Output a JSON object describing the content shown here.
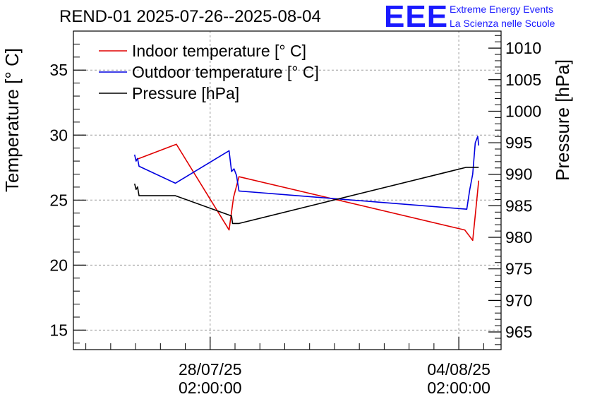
{
  "header": {
    "title": "REND-01 2025-07-26--2025-08-04",
    "logo_text": "EEE",
    "logo_line1": "Extreme Energy Events",
    "logo_line2": "La Scienza nelle Scuole"
  },
  "colors": {
    "indoor": "#e00000",
    "outdoor": "#0000e0",
    "pressure": "#000000",
    "logo": "#1a1aff"
  },
  "chart_data": {
    "type": "line",
    "title": "REND-01 2025-07-26--2025-08-04",
    "xlabel": "",
    "ylabel_left": "Temperature [° C]",
    "ylabel_right": "Pressure [hPa]",
    "ylim_left": [
      13.5,
      38
    ],
    "ylim_right": [
      962.2,
      1012.7
    ],
    "xlim_days": [
      -2.75,
      5.85
    ],
    "x_unit": "days since 28/07/25 02:00:00",
    "x_ticks": [
      {
        "x": 0,
        "label_date": "28/07/25",
        "label_time": "02:00:00"
      },
      {
        "x": 5,
        "label_date": "04/08/25",
        "label_time": "02:00:00"
      }
    ],
    "y_ticks_left": [
      15,
      20,
      25,
      30,
      35
    ],
    "y_ticks_right": [
      965,
      970,
      975,
      980,
      985,
      990,
      995,
      1000,
      1005,
      1010
    ],
    "grid": true,
    "legend_position": "top-left",
    "series": [
      {
        "name": "Indoor temperature [° C]",
        "axis": "left",
        "points": [
          [
            -1.5,
            28.1
          ],
          [
            -0.68,
            29.3
          ],
          [
            0.38,
            22.7
          ],
          [
            0.47,
            25.2
          ],
          [
            0.58,
            26.8
          ],
          [
            5.12,
            22.7
          ],
          [
            5.22,
            22.2
          ],
          [
            5.28,
            21.9
          ],
          [
            5.34,
            24.2
          ],
          [
            5.4,
            26.5
          ]
        ]
      },
      {
        "name": "Outdoor temperature [° C]",
        "axis": "left",
        "points": [
          [
            -1.52,
            28.5
          ],
          [
            -1.49,
            28.0
          ],
          [
            -1.46,
            28.2
          ],
          [
            -1.43,
            27.6
          ],
          [
            -0.7,
            26.3
          ],
          [
            0.38,
            28.8
          ],
          [
            0.43,
            27.2
          ],
          [
            0.48,
            27.4
          ],
          [
            0.53,
            26.9
          ],
          [
            0.58,
            25.7
          ],
          [
            5.16,
            24.3
          ],
          [
            5.22,
            25.8
          ],
          [
            5.28,
            27.0
          ],
          [
            5.33,
            29.4
          ],
          [
            5.38,
            29.9
          ],
          [
            5.4,
            29.2
          ]
        ]
      },
      {
        "name": "Pressure [hPa]",
        "axis": "right",
        "points": [
          [
            -1.52,
            988.5
          ],
          [
            -1.49,
            987.6
          ],
          [
            -1.46,
            988.0
          ],
          [
            -1.43,
            986.6
          ],
          [
            -0.7,
            986.6
          ],
          [
            0.43,
            983.4
          ],
          [
            0.45,
            982.2
          ],
          [
            0.58,
            982.2
          ],
          [
            5.15,
            991.1
          ],
          [
            5.4,
            991.1
          ]
        ]
      }
    ]
  }
}
